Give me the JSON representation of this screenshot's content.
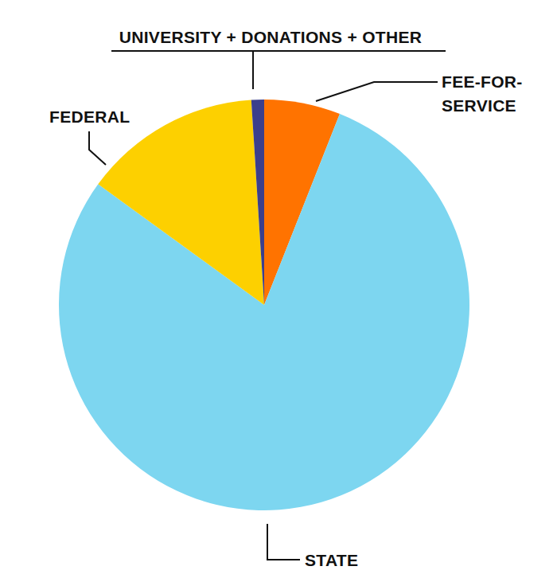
{
  "chart_data": {
    "type": "pie",
    "categories": [
      "FEE-FOR-SERVICE",
      "STATE",
      "FEDERAL",
      "UNIVERSITY + DONATIONS + OTHER"
    ],
    "values": [
      6,
      79,
      14,
      1
    ],
    "colors": [
      "#ff7300",
      "#7dd6f0",
      "#fdd000",
      "#3b3f8c"
    ]
  }
}
